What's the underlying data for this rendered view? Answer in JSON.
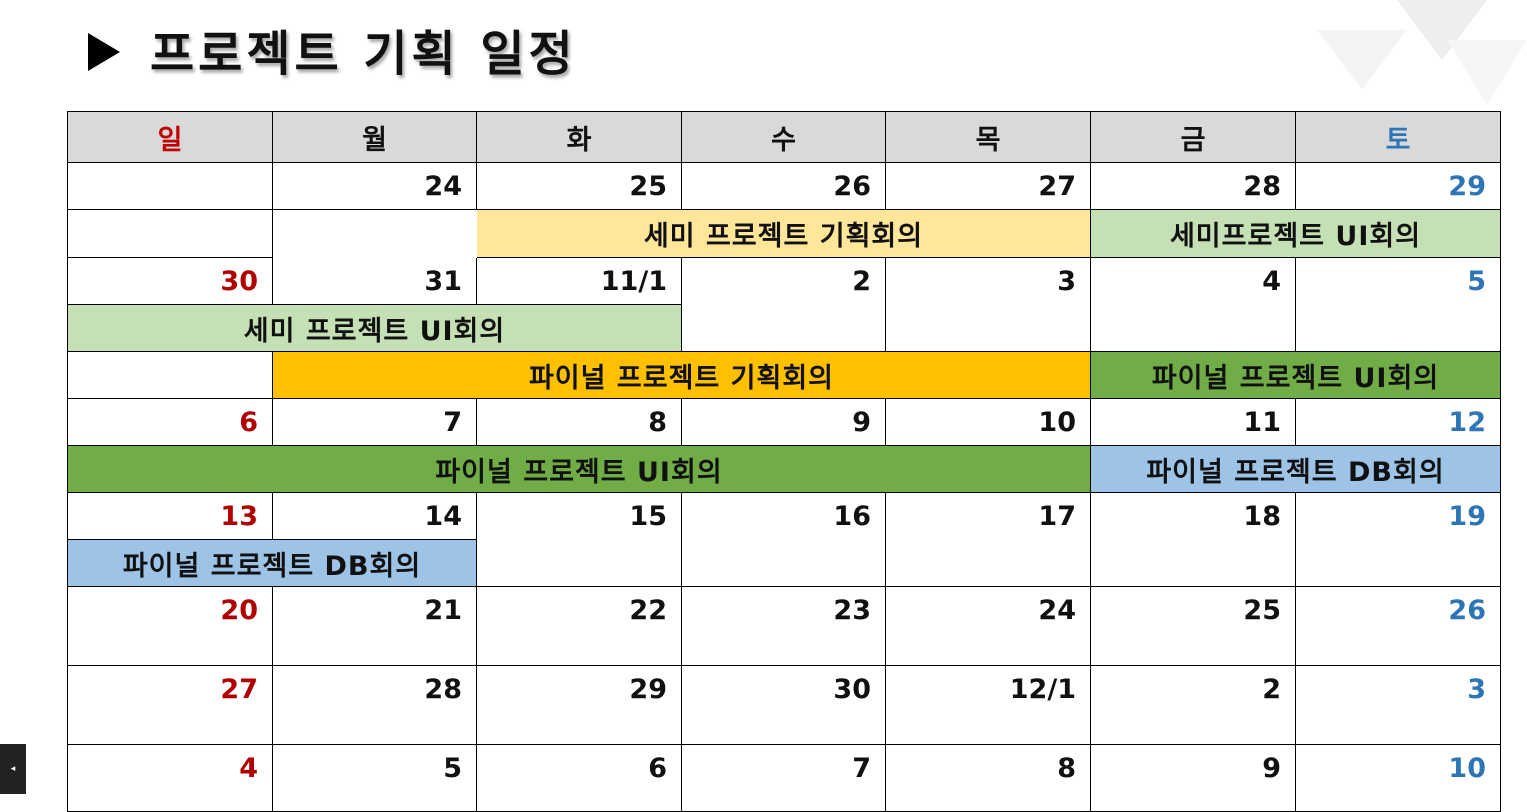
{
  "title": "프로젝트 기획 일정",
  "colors": {
    "sunday": "#c00000",
    "saturday": "#2e75b6",
    "header_bg": "#d9d9d9",
    "semi_plan": "#ffe699",
    "semi_ui": "#c5e0b4",
    "final_plan": "#ffc000",
    "final_ui": "#70ad47",
    "final_db": "#9dc3e6"
  },
  "weekdays": [
    "일",
    "월",
    "화",
    "수",
    "목",
    "금",
    "토"
  ],
  "weeks": [
    [
      "",
      "24",
      "25",
      "26",
      "27",
      "28",
      "29"
    ],
    [
      "30",
      "31",
      "11/1",
      "2",
      "3",
      "4",
      "5"
    ],
    [
      "6",
      "7",
      "8",
      "9",
      "10",
      "11",
      "12"
    ],
    [
      "13",
      "14",
      "15",
      "16",
      "17",
      "18",
      "19"
    ],
    [
      "20",
      "21",
      "22",
      "23",
      "24",
      "25",
      "26"
    ],
    [
      "27",
      "28",
      "29",
      "30",
      "12/1",
      "2",
      "3"
    ],
    [
      "4",
      "5",
      "6",
      "7",
      "8",
      "9",
      "10"
    ]
  ],
  "events": [
    {
      "label": "세미 프로젝트 기획회의",
      "color": "semi_plan"
    },
    {
      "label": "세미프로젝트 UI회의",
      "color": "semi_ui"
    },
    {
      "label": "세미 프로젝트 UI회의",
      "color": "semi_ui"
    },
    {
      "label": "파이널 프로젝트 기획회의",
      "color": "final_plan"
    },
    {
      "label": "파이널 프로젝트 UI회의",
      "color": "final_ui"
    },
    {
      "label": "파이널 프로젝트 UI회의",
      "color": "final_ui"
    },
    {
      "label": "파이널 프로젝트 DB회의",
      "color": "final_db"
    },
    {
      "label": "파이널 프로젝트 DB회의",
      "color": "final_db"
    }
  ]
}
